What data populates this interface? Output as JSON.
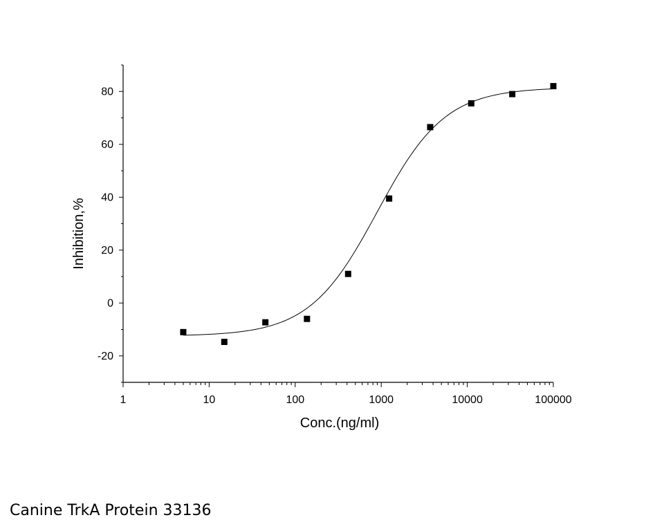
{
  "caption": "Canine TrkA Protein 33136",
  "chart_data": {
    "type": "scatter",
    "xlabel": "Conc.(ng/ml)",
    "ylabel": "Inhibition,%",
    "x_scale": "log",
    "xlim": [
      1,
      100000
    ],
    "ylim": [
      -30,
      90
    ],
    "x_ticks": [
      1,
      10,
      100,
      1000,
      10000,
      100000
    ],
    "x_tick_labels": [
      "1",
      "10",
      "100",
      "1000",
      "10000",
      "100000"
    ],
    "y_ticks": [
      -20,
      0,
      20,
      40,
      60,
      80
    ],
    "y_tick_labels": [
      "-20",
      "0",
      "20",
      "40",
      "60",
      "80"
    ],
    "grid": false,
    "series": [
      {
        "x": [
          5,
          15,
          45,
          137,
          412,
          1235,
          3704,
          11111,
          33333,
          100000
        ],
        "y": [
          -11,
          -14.7,
          -7.3,
          -6,
          11,
          39.5,
          66.5,
          75.5,
          79,
          82
        ]
      }
    ],
    "fit_curve": {
      "model": "4PL",
      "bottom": -12.5,
      "top": 81.5,
      "ec50": 900,
      "hill": 1.1
    }
  }
}
